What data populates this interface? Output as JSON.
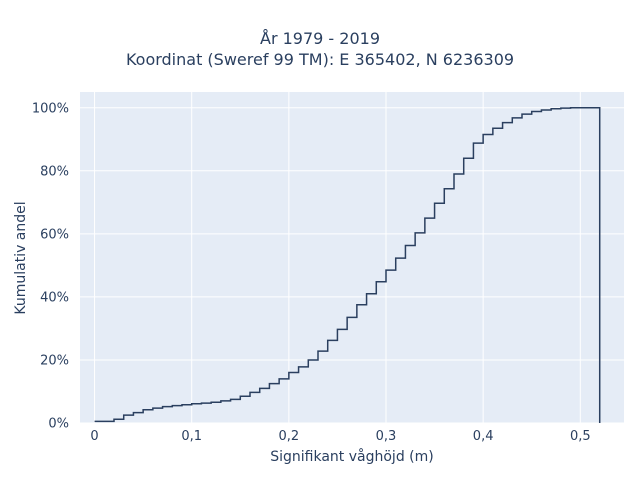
{
  "chart_data": {
    "type": "line",
    "title": [
      "År 1979 - 2019",
      "Koordinat (Sweref 99 TM): E 365402, N 6236309"
    ],
    "xlabel": "Signifikant våghöjd (m)",
    "ylabel": "Kumulativ andel",
    "xlim": [
      -0.015,
      0.545
    ],
    "ylim": [
      0,
      1.05
    ],
    "x_ticks": [
      0,
      0.1,
      0.2,
      0.3,
      0.4,
      0.5
    ],
    "x_tick_labels": [
      "0",
      "0,1",
      "0,2",
      "0,3",
      "0,4",
      "0,5"
    ],
    "y_ticks": [
      0,
      0.2,
      0.4,
      0.6,
      0.8,
      1.0
    ],
    "y_tick_labels": [
      "0%",
      "20%",
      "40%",
      "60%",
      "80%",
      "100%"
    ],
    "grid": true,
    "line_shape": "step",
    "series": [
      {
        "color": "#2a3f5f",
        "x": [
          0.01,
          0.02,
          0.03,
          0.04,
          0.05,
          0.06,
          0.07,
          0.08,
          0.09,
          0.1,
          0.11,
          0.12,
          0.13,
          0.14,
          0.15,
          0.16,
          0.17,
          0.18,
          0.19,
          0.2,
          0.21,
          0.22,
          0.23,
          0.24,
          0.25,
          0.26,
          0.27,
          0.28,
          0.29,
          0.3,
          0.31,
          0.32,
          0.33,
          0.34,
          0.35,
          0.36,
          0.37,
          0.38,
          0.39,
          0.4,
          0.41,
          0.42,
          0.43,
          0.44,
          0.45,
          0.46,
          0.47,
          0.48,
          0.49,
          0.5,
          0.51,
          0.52
        ],
        "y": [
          0.005,
          0.012,
          0.025,
          0.033,
          0.042,
          0.047,
          0.052,
          0.055,
          0.058,
          0.061,
          0.063,
          0.066,
          0.07,
          0.075,
          0.085,
          0.097,
          0.11,
          0.125,
          0.14,
          0.16,
          0.178,
          0.2,
          0.228,
          0.262,
          0.297,
          0.335,
          0.375,
          0.41,
          0.448,
          0.485,
          0.523,
          0.563,
          0.603,
          0.65,
          0.697,
          0.743,
          0.79,
          0.84,
          0.888,
          0.915,
          0.935,
          0.953,
          0.968,
          0.98,
          0.988,
          0.993,
          0.997,
          0.999,
          1.0,
          1.0,
          1.0,
          1.0
        ]
      }
    ]
  }
}
